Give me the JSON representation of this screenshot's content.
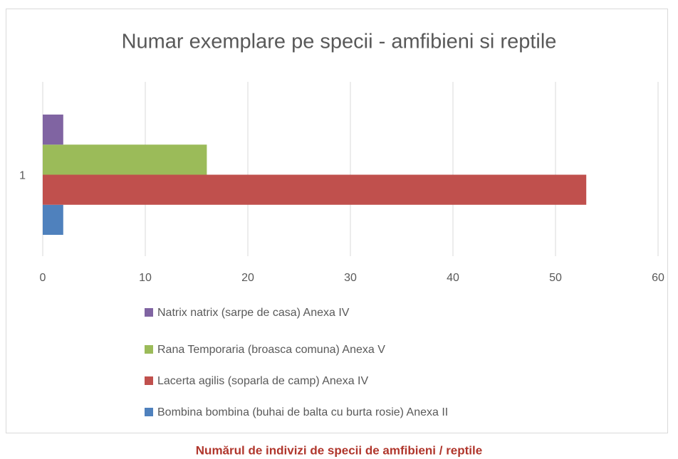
{
  "chart_data": {
    "type": "hbar",
    "title": "Numar exemplare pe specii - amfibieni si reptile",
    "categories": [
      "1"
    ],
    "series": [
      {
        "name": "Bombina bombina (buhai de balta cu burta rosie) Anexa II",
        "color": "#4f81bd",
        "values": [
          2
        ]
      },
      {
        "name": "Lacerta agilis (soparla de camp) Anexa IV",
        "color": "#c0504d",
        "values": [
          53
        ]
      },
      {
        "name": "Rana Temporaria (broasca comuna) Anexa V",
        "color": "#9bbb59",
        "values": [
          16
        ]
      },
      {
        "name": "Natrix natrix (sarpe de casa) Anexa IV",
        "color": "#8064a2",
        "values": [
          2
        ]
      }
    ],
    "xlim": [
      0,
      60
    ],
    "xticks": [
      0,
      10,
      20,
      30,
      40,
      50,
      60
    ],
    "grid": true,
    "legend": "bottom"
  },
  "caption": "Numărul de indivizi de specii de amfibieni / reptile"
}
